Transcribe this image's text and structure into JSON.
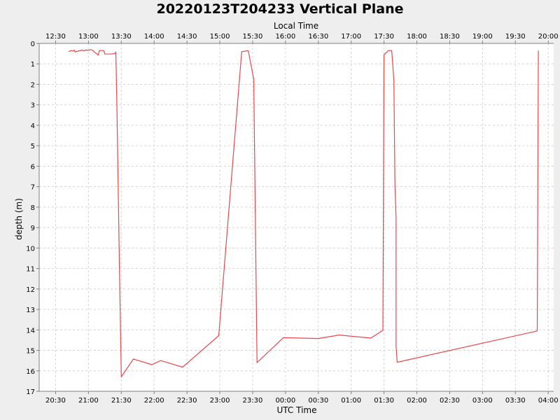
{
  "chart_data": {
    "type": "line",
    "title": "20220123T204233 Vertical Plane",
    "xlabel": "UTC Time",
    "x2label": "Local Time",
    "ylabel": "depth (m)",
    "y_inverted": true,
    "ylim": [
      0,
      17
    ],
    "xlim": [
      "20:15",
      "04:05"
    ],
    "grid": true,
    "x_ticks": [
      "20:30",
      "21:00",
      "21:30",
      "22:00",
      "22:30",
      "23:00",
      "23:30",
      "00:00",
      "00:30",
      "01:00",
      "01:30",
      "02:00",
      "02:30",
      "03:00",
      "03:30",
      "04:00"
    ],
    "x2_ticks": [
      "12:30",
      "13:00",
      "13:30",
      "14:00",
      "14:30",
      "15:00",
      "15:30",
      "16:00",
      "16:30",
      "17:00",
      "17:30",
      "18:00",
      "18:30",
      "19:00",
      "19:30",
      "20:00"
    ],
    "y_ticks": [
      0,
      1,
      2,
      3,
      4,
      5,
      6,
      7,
      8,
      9,
      10,
      11,
      12,
      13,
      14,
      15,
      16,
      17
    ],
    "series": [
      {
        "color": "#e8474b",
        "points": [
          [
            "20:42",
            0.4
          ],
          [
            "20:44",
            0.35
          ],
          [
            "20:46",
            0.38
          ],
          [
            "20:47",
            0.33
          ],
          [
            "20:48",
            0.42
          ],
          [
            "20:50",
            0.38
          ],
          [
            "20:52",
            0.36
          ],
          [
            "20:54",
            0.33
          ],
          [
            "20:56",
            0.36
          ],
          [
            "20:58",
            0.32
          ],
          [
            "21:00",
            0.34
          ],
          [
            "21:02",
            0.3
          ],
          [
            "21:04",
            0.35
          ],
          [
            "21:06",
            0.45
          ],
          [
            "21:08",
            0.52
          ],
          [
            "21:09",
            0.58
          ],
          [
            "21:10",
            0.35
          ],
          [
            "21:14",
            0.35
          ],
          [
            "21:15",
            0.52
          ],
          [
            "21:20",
            0.52
          ],
          [
            "21:24",
            0.5
          ],
          [
            "21:25",
            0.42
          ],
          [
            "21:26",
            3.0
          ],
          [
            "21:28",
            10.0
          ],
          [
            "21:30",
            16.3
          ],
          [
            "21:41",
            15.42
          ],
          [
            "21:58",
            15.7
          ],
          [
            "22:06",
            15.5
          ],
          [
            "22:26",
            15.82
          ],
          [
            "22:59",
            14.28
          ],
          [
            "23:20",
            0.4
          ],
          [
            "23:23",
            0.38
          ],
          [
            "23:26",
            0.35
          ],
          [
            "23:31",
            1.75
          ],
          [
            "23:34",
            15.6
          ],
          [
            "23:58",
            14.38
          ],
          [
            "00:30",
            14.42
          ],
          [
            "00:49",
            14.25
          ],
          [
            "01:18",
            14.4
          ],
          [
            "01:29",
            14.02
          ],
          [
            "01:30",
            0.55
          ],
          [
            "01:34",
            0.35
          ],
          [
            "01:37",
            0.35
          ],
          [
            "01:39",
            1.8
          ],
          [
            "01:40",
            6.8
          ],
          [
            "01:41",
            8.5
          ],
          [
            "01:41",
            14.8
          ],
          [
            "01:42",
            15.58
          ],
          [
            "03:50",
            14.05
          ],
          [
            "03:51",
            0.35
          ]
        ]
      }
    ]
  }
}
